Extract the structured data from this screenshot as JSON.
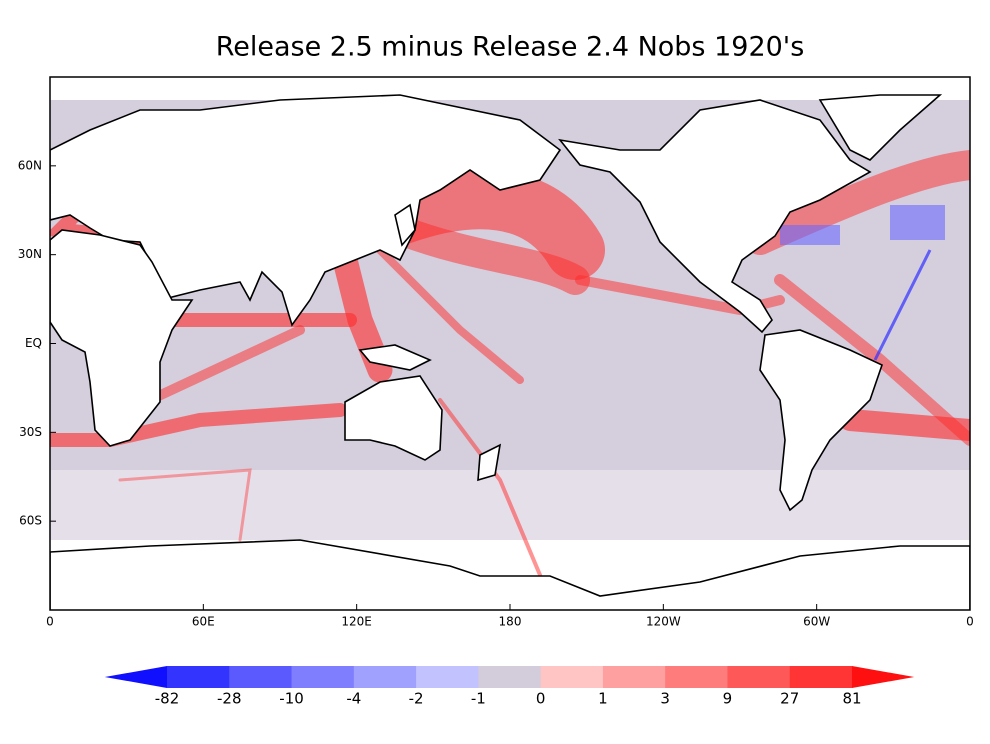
{
  "chart_data": {
    "type": "map",
    "title": "Release 2.5 minus Release 2.4  Nobs 1920's",
    "xlim": [
      0,
      360
    ],
    "xticks": [
      {
        "value": 0,
        "label": "0"
      },
      {
        "value": 60,
        "label": "60E"
      },
      {
        "value": 120,
        "label": "120E"
      },
      180,
      {
        "value": 240,
        "label": "120W"
      },
      {
        "value": 300,
        "label": "60W"
      },
      {
        "value": 360,
        "label": "0"
      }
    ],
    "ylim": [
      -90,
      90
    ],
    "yticks": [
      {
        "value": 60,
        "label": "60N"
      },
      {
        "value": 30,
        "label": "30N"
      },
      {
        "value": 0,
        "label": "EQ"
      },
      {
        "value": -30,
        "label": "30S"
      },
      {
        "value": -60,
        "label": "60S"
      }
    ],
    "colorbar": {
      "levels": [
        -82,
        -28,
        -10,
        -4,
        -2,
        -1,
        0,
        1,
        3,
        9,
        27,
        81
      ],
      "colors": [
        "#1010ff",
        "#3434ff",
        "#5a5aff",
        "#7e7eff",
        "#a0a0ff",
        "#c2c2ff",
        "#d2ccdb",
        "#ffc4c4",
        "#ffa0a0",
        "#ff7c7c",
        "#ff5858",
        "#ff3434",
        "#ff1010"
      ]
    }
  }
}
